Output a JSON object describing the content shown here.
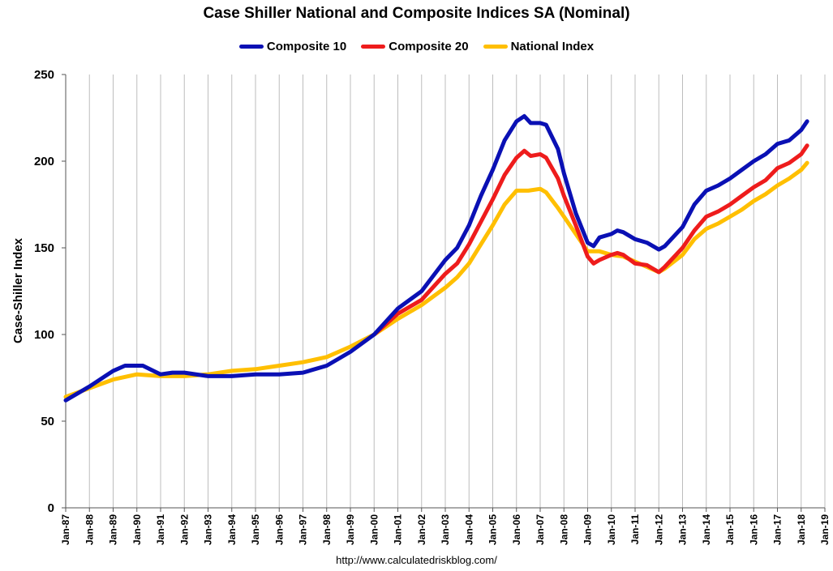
{
  "chart_data": {
    "type": "line",
    "title": "Case Shiller National and Composite Indices SA (Nominal)",
    "ylabel": "Case-Shiller Index",
    "xlabel": "",
    "ylim": [
      0,
      250
    ],
    "yticks": [
      0,
      50,
      100,
      150,
      200,
      250
    ],
    "xlim": [
      1987,
      2019
    ],
    "xtick_labels": [
      "Jan-87",
      "Jan-88",
      "Jan-89",
      "Jan-90",
      "Jan-91",
      "Jan-92",
      "Jan-93",
      "Jan-94",
      "Jan-95",
      "Jan-96",
      "Jan-97",
      "Jan-98",
      "Jan-99",
      "Jan-00",
      "Jan-01",
      "Jan-02",
      "Jan-03",
      "Jan-04",
      "Jan-05",
      "Jan-06",
      "Jan-07",
      "Jan-08",
      "Jan-09",
      "Jan-10",
      "Jan-11",
      "Jan-12",
      "Jan-13",
      "Jan-14",
      "Jan-15",
      "Jan-16",
      "Jan-17",
      "Jan-18",
      "Jan-19"
    ],
    "grid": "vertical",
    "legend_position": "top",
    "source": "http://www.calculatedriskblog.com/",
    "series": [
      {
        "name": "Composite 10",
        "color": "#0a10b4",
        "points": [
          [
            1987.0,
            62
          ],
          [
            1988.0,
            70
          ],
          [
            1989.0,
            79
          ],
          [
            1989.5,
            82
          ],
          [
            1990.25,
            82
          ],
          [
            1991.0,
            77
          ],
          [
            1991.5,
            78
          ],
          [
            1992.0,
            78
          ],
          [
            1993.0,
            76
          ],
          [
            1994.0,
            76
          ],
          [
            1995.0,
            77
          ],
          [
            1996.0,
            77
          ],
          [
            1997.0,
            78
          ],
          [
            1998.0,
            82
          ],
          [
            1999.0,
            90
          ],
          [
            2000.0,
            100
          ],
          [
            2001.0,
            115
          ],
          [
            2002.0,
            125
          ],
          [
            2003.0,
            143
          ],
          [
            2003.5,
            150
          ],
          [
            2004.0,
            163
          ],
          [
            2004.5,
            180
          ],
          [
            2005.0,
            195
          ],
          [
            2005.5,
            212
          ],
          [
            2006.0,
            223
          ],
          [
            2006.33,
            226
          ],
          [
            2006.6,
            222
          ],
          [
            2007.0,
            222
          ],
          [
            2007.25,
            221
          ],
          [
            2007.75,
            207
          ],
          [
            2008.0,
            193
          ],
          [
            2008.5,
            170
          ],
          [
            2009.0,
            153
          ],
          [
            2009.25,
            151
          ],
          [
            2009.5,
            156
          ],
          [
            2010.0,
            158
          ],
          [
            2010.25,
            160
          ],
          [
            2010.5,
            159
          ],
          [
            2011.0,
            155
          ],
          [
            2011.5,
            153
          ],
          [
            2012.0,
            149
          ],
          [
            2012.25,
            151
          ],
          [
            2013.0,
            162
          ],
          [
            2013.5,
            175
          ],
          [
            2014.0,
            183
          ],
          [
            2014.5,
            186
          ],
          [
            2015.0,
            190
          ],
          [
            2015.5,
            195
          ],
          [
            2016.0,
            200
          ],
          [
            2016.5,
            204
          ],
          [
            2017.0,
            210
          ],
          [
            2017.5,
            212
          ],
          [
            2018.0,
            218
          ],
          [
            2018.25,
            223
          ]
        ]
      },
      {
        "name": "Composite 20",
        "color": "#ee1c1c",
        "points": [
          [
            2000.0,
            100
          ],
          [
            2001.0,
            112
          ],
          [
            2002.0,
            120
          ],
          [
            2003.0,
            135
          ],
          [
            2003.5,
            141
          ],
          [
            2004.0,
            152
          ],
          [
            2004.5,
            165
          ],
          [
            2005.0,
            178
          ],
          [
            2005.5,
            192
          ],
          [
            2006.0,
            202
          ],
          [
            2006.33,
            206
          ],
          [
            2006.6,
            203
          ],
          [
            2007.0,
            204
          ],
          [
            2007.25,
            202
          ],
          [
            2007.75,
            190
          ],
          [
            2008.0,
            180
          ],
          [
            2008.5,
            163
          ],
          [
            2009.0,
            145
          ],
          [
            2009.25,
            141
          ],
          [
            2009.5,
            143
          ],
          [
            2010.0,
            146
          ],
          [
            2010.25,
            147
          ],
          [
            2010.5,
            146
          ],
          [
            2011.0,
            141
          ],
          [
            2011.5,
            140
          ],
          [
            2012.0,
            136
          ],
          [
            2012.25,
            139
          ],
          [
            2013.0,
            150
          ],
          [
            2013.5,
            160
          ],
          [
            2014.0,
            168
          ],
          [
            2014.5,
            171
          ],
          [
            2015.0,
            175
          ],
          [
            2015.5,
            180
          ],
          [
            2016.0,
            185
          ],
          [
            2016.5,
            189
          ],
          [
            2017.0,
            196
          ],
          [
            2017.5,
            199
          ],
          [
            2018.0,
            204
          ],
          [
            2018.25,
            209
          ]
        ]
      },
      {
        "name": "National Index",
        "color": "#ffbf00",
        "points": [
          [
            1987.0,
            64
          ],
          [
            1988.0,
            69
          ],
          [
            1989.0,
            74
          ],
          [
            1990.0,
            77
          ],
          [
            1991.0,
            76
          ],
          [
            1992.0,
            76
          ],
          [
            1993.0,
            77
          ],
          [
            1994.0,
            79
          ],
          [
            1995.0,
            80
          ],
          [
            1996.0,
            82
          ],
          [
            1997.0,
            84
          ],
          [
            1998.0,
            87
          ],
          [
            1999.0,
            93
          ],
          [
            2000.0,
            100
          ],
          [
            2001.0,
            109
          ],
          [
            2002.0,
            117
          ],
          [
            2003.0,
            127
          ],
          [
            2003.5,
            133
          ],
          [
            2004.0,
            141
          ],
          [
            2004.5,
            152
          ],
          [
            2005.0,
            163
          ],
          [
            2005.5,
            175
          ],
          [
            2006.0,
            183
          ],
          [
            2006.5,
            183
          ],
          [
            2007.0,
            184
          ],
          [
            2007.25,
            182
          ],
          [
            2007.75,
            173
          ],
          [
            2008.0,
            168
          ],
          [
            2008.5,
            158
          ],
          [
            2009.0,
            148
          ],
          [
            2009.5,
            148
          ],
          [
            2010.0,
            146
          ],
          [
            2010.5,
            145
          ],
          [
            2011.0,
            142
          ],
          [
            2011.5,
            139
          ],
          [
            2012.0,
            136
          ],
          [
            2012.25,
            138
          ],
          [
            2013.0,
            146
          ],
          [
            2013.5,
            155
          ],
          [
            2014.0,
            161
          ],
          [
            2014.5,
            164
          ],
          [
            2015.0,
            168
          ],
          [
            2015.5,
            172
          ],
          [
            2016.0,
            177
          ],
          [
            2016.5,
            181
          ],
          [
            2017.0,
            186
          ],
          [
            2017.5,
            190
          ],
          [
            2018.0,
            195
          ],
          [
            2018.25,
            199
          ]
        ]
      }
    ]
  }
}
